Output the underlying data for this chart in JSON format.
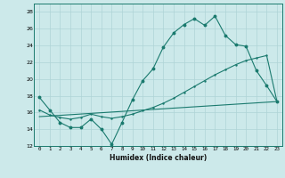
{
  "xlabel": "Humidex (Indice chaleur)",
  "ylabel": "",
  "bg_color": "#cce9ea",
  "grid_color": "#afd4d6",
  "line_color": "#1a7a6e",
  "xlim": [
    -0.5,
    23.5
  ],
  "ylim": [
    12,
    29
  ],
  "xticks": [
    0,
    1,
    2,
    3,
    4,
    5,
    6,
    7,
    8,
    9,
    10,
    11,
    12,
    13,
    14,
    15,
    16,
    17,
    18,
    19,
    20,
    21,
    22,
    23
  ],
  "yticks": [
    12,
    14,
    16,
    18,
    20,
    22,
    24,
    26,
    28
  ],
  "line1_x": [
    0,
    1,
    2,
    3,
    4,
    5,
    6,
    7,
    8,
    9,
    10,
    11,
    12,
    13,
    14,
    15,
    16,
    17,
    18,
    19,
    20,
    21,
    22,
    23
  ],
  "line1_y": [
    17.8,
    16.3,
    14.8,
    14.2,
    14.2,
    15.2,
    14.0,
    12.2,
    14.8,
    17.5,
    19.8,
    21.2,
    23.8,
    25.5,
    26.5,
    27.2,
    26.4,
    27.5,
    25.2,
    24.1,
    23.9,
    21.0,
    19.2,
    17.3
  ],
  "line2_x": [
    0,
    1,
    2,
    3,
    4,
    5,
    6,
    7,
    8,
    9,
    10,
    11,
    12,
    13,
    14,
    15,
    16,
    17,
    18,
    19,
    20,
    21,
    22,
    23
  ],
  "line2_y": [
    16.3,
    15.7,
    15.4,
    15.2,
    15.4,
    15.8,
    15.5,
    15.3,
    15.5,
    15.8,
    16.2,
    16.6,
    17.1,
    17.7,
    18.4,
    19.1,
    19.8,
    20.5,
    21.1,
    21.7,
    22.2,
    22.5,
    22.8,
    17.3
  ],
  "line3_x": [
    0,
    23
  ],
  "line3_y": [
    15.5,
    17.3
  ]
}
